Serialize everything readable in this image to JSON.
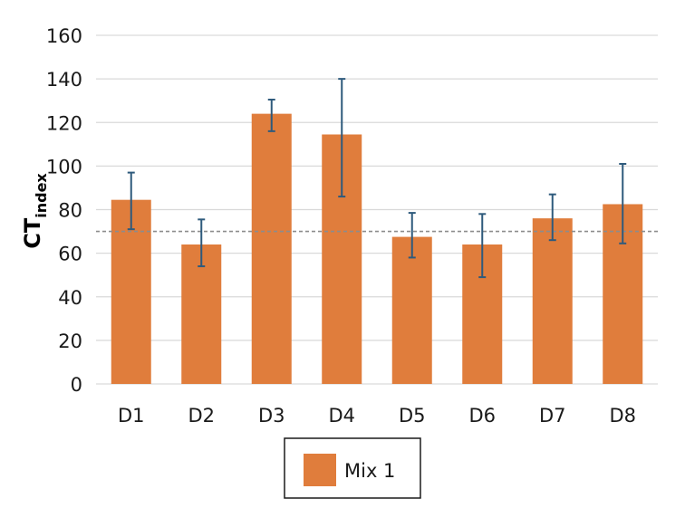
{
  "chart_data": {
    "type": "bar",
    "categories": [
      "D1",
      "D2",
      "D3",
      "D4",
      "D5",
      "D6",
      "D7",
      "D8"
    ],
    "series": [
      {
        "name": "Mix 1",
        "values": [
          84.5,
          64,
          124,
          114.5,
          67.5,
          64,
          76,
          82.5
        ],
        "error_low": [
          71,
          54,
          116,
          86,
          58,
          49,
          66,
          64.5
        ],
        "error_high": [
          97,
          75.5,
          130.5,
          140,
          78.5,
          78,
          87,
          101
        ]
      }
    ],
    "ylabel_main": "CT",
    "ylabel_sub": "index",
    "ylim": [
      0,
      160
    ],
    "yticks": [
      0,
      20,
      40,
      60,
      80,
      100,
      120,
      140,
      160
    ],
    "reference_line": 70,
    "grid": true,
    "legend_position": "bottom",
    "colors": {
      "bar": "#e07d3c",
      "error": "#2e5a7c",
      "grid": "#d9d9d9",
      "reference": "#8c8c8c"
    }
  }
}
